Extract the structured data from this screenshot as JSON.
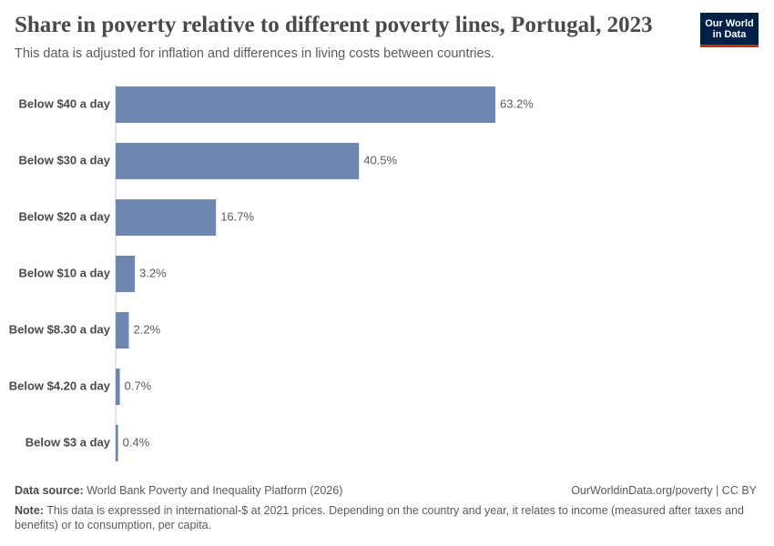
{
  "chart_data": {
    "type": "bar",
    "orientation": "horizontal",
    "title": "Share in poverty relative to different poverty lines, Portugal, 2023",
    "subtitle": "This data is adjusted for inflation and differences in living costs between countries.",
    "categories": [
      "Below $40 a day",
      "Below $30 a day",
      "Below $20 a day",
      "Below $10 a day",
      "Below $8.30 a day",
      "Below $4.20 a day",
      "Below $3 a day"
    ],
    "values": [
      63.2,
      40.5,
      16.7,
      3.2,
      2.2,
      0.7,
      0.4
    ],
    "value_labels": [
      "63.2%",
      "40.5%",
      "16.7%",
      "3.2%",
      "2.2%",
      "0.7%",
      "0.4%"
    ],
    "color": "#6d87b0"
  },
  "logo": {
    "line1": "Our World",
    "line2": "in Data"
  },
  "footer": {
    "source_label": "Data source:",
    "source": "World Bank Poverty and Inequality Platform (2026)",
    "url": "OurWorldinData.org/poverty | CC BY",
    "note_label": "Note:",
    "note": "This data is expressed in international-$ at 2021 prices. Depending on the country and year, it relates to income (measured after taxes and benefits) or to consumption, per capita."
  }
}
